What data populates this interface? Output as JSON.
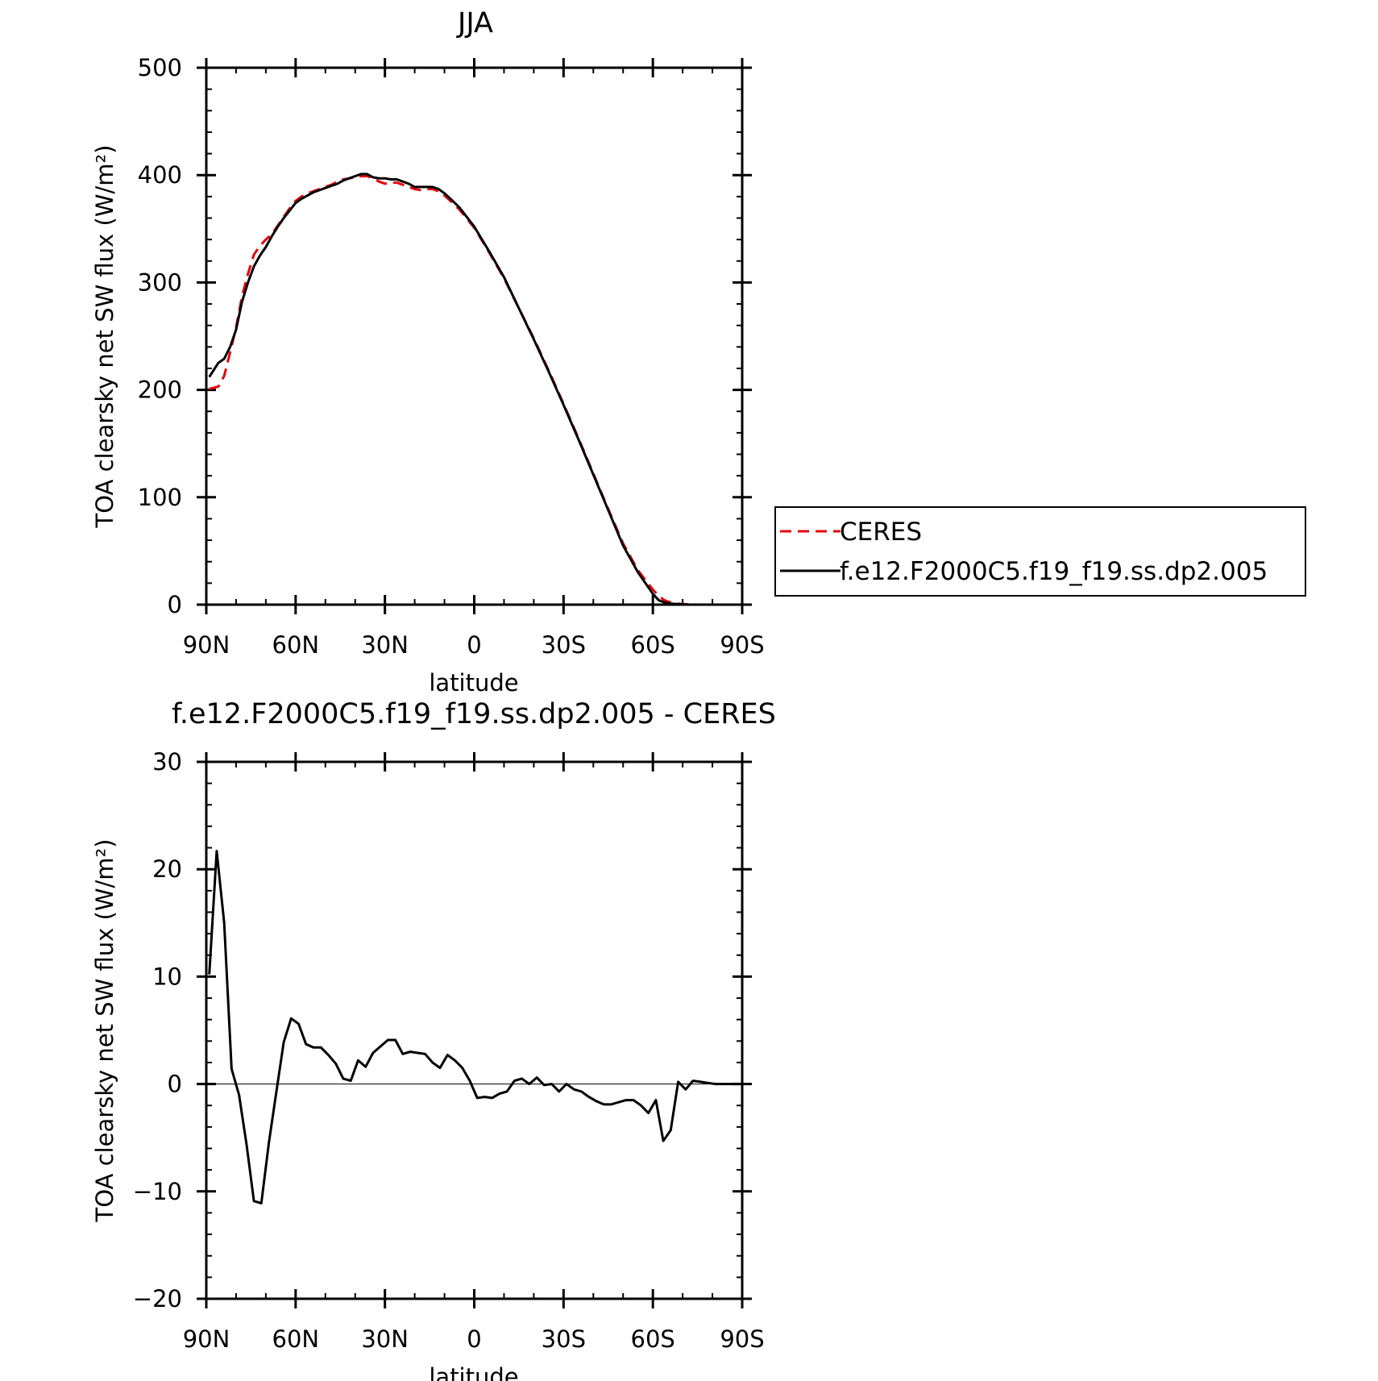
{
  "chart_data": [
    {
      "type": "line",
      "title": "JJA",
      "xlabel": "latitude",
      "ylabel": "TOA clearsky net SW flux (W/m²)",
      "xlim": [
        90,
        -90
      ],
      "ylim": [
        0,
        500
      ],
      "x_ticks": [
        90,
        60,
        30,
        0,
        -30,
        -60,
        -90
      ],
      "x_tick_labels": [
        "90N",
        "60N",
        "30N",
        "0",
        "30S",
        "60S",
        "90S"
      ],
      "y_ticks": [
        0,
        100,
        200,
        300,
        400,
        500
      ],
      "y_tick_labels": [
        "0",
        "100",
        "200",
        "300",
        "400",
        "500"
      ],
      "grid": false,
      "legend_position": "right",
      "series": [
        {
          "name": "CERES",
          "color": "#e8000b",
          "dash": "dashed",
          "x": [
            89,
            86,
            84,
            82,
            80,
            78,
            76,
            74,
            72,
            70,
            68,
            66,
            64,
            62,
            60,
            58,
            56,
            54,
            52,
            50,
            48,
            46,
            44,
            42,
            40,
            38,
            36,
            34,
            32,
            30,
            28,
            26,
            24,
            22,
            20,
            18,
            16,
            14,
            12,
            10,
            8,
            5,
            0,
            -5,
            -10,
            -15,
            -20,
            -25,
            -30,
            -35,
            -40,
            -45,
            -50,
            -55,
            -58,
            -60,
            -62,
            -64,
            -66,
            -68,
            -70,
            -72,
            -75,
            -80,
            -85,
            -89
          ],
          "y": [
            201,
            203,
            213,
            235,
            258,
            287,
            308,
            326,
            334,
            340,
            345,
            353,
            361,
            369,
            376,
            380,
            383,
            385,
            387,
            389,
            391,
            394,
            396,
            397,
            398,
            399,
            399,
            397,
            394,
            392,
            393,
            393,
            391,
            389,
            387,
            386,
            387,
            387,
            385,
            381,
            376,
            368,
            351,
            328,
            304,
            276,
            248,
            218,
            187,
            155,
            122,
            89,
            57,
            32,
            21,
            14,
            8,
            4,
            2,
            1,
            0.5,
            0.2,
            0,
            0,
            0,
            0
          ]
        },
        {
          "name": "f.e12.F2000C5.f19_f19.ss.dp2.005",
          "color": "#000000",
          "dash": "solid",
          "x": [
            89,
            86,
            84,
            82,
            80,
            78,
            76,
            74,
            72,
            70,
            68,
            66,
            64,
            62,
            60,
            58,
            56,
            54,
            52,
            50,
            48,
            46,
            44,
            42,
            40,
            38,
            36,
            34,
            32,
            30,
            28,
            26,
            24,
            22,
            20,
            18,
            16,
            14,
            12,
            10,
            8,
            5,
            0,
            -5,
            -10,
            -15,
            -20,
            -25,
            -30,
            -35,
            -40,
            -45,
            -50,
            -55,
            -58,
            -60,
            -62,
            -64,
            -66,
            -68,
            -70,
            -72,
            -75,
            -80,
            -85,
            -89
          ],
          "y": [
            212,
            225,
            229,
            240,
            256,
            282,
            300,
            315,
            325,
            333,
            343,
            352,
            360,
            367,
            374,
            378,
            381,
            384,
            386,
            388,
            390,
            392,
            395,
            397,
            399,
            401,
            401,
            398,
            397,
            397,
            396,
            396,
            394,
            392,
            389,
            389,
            389,
            389,
            387,
            383,
            378,
            370,
            352,
            329,
            305,
            276,
            247,
            217,
            186,
            154,
            121,
            88,
            55,
            30,
            18,
            10,
            4,
            2,
            1,
            0.5,
            0.3,
            0.1,
            0,
            0,
            0,
            0
          ]
        }
      ]
    },
    {
      "type": "line",
      "title": "f.e12.F2000C5.f19_f19.ss.dp2.005 - CERES",
      "xlabel": "latitude",
      "ylabel": "TOA clearsky net SW flux (W/m²)",
      "xlim": [
        90,
        -90
      ],
      "ylim": [
        -20,
        30
      ],
      "x_ticks": [
        90,
        60,
        30,
        0,
        -30,
        -60,
        -90
      ],
      "x_tick_labels": [
        "90N",
        "60N",
        "30N",
        "0",
        "30S",
        "60S",
        "90S"
      ],
      "y_ticks": [
        -20,
        -10,
        0,
        10,
        20,
        30
      ],
      "y_tick_labels": [
        "−20",
        "−10",
        "0",
        "10",
        "20",
        "30"
      ],
      "grid": false,
      "series": [
        {
          "color": "#000000",
          "x": [
            89,
            86.5,
            84,
            81.5,
            79,
            76.5,
            74,
            71.5,
            69,
            66.5,
            64,
            61.5,
            59,
            56.5,
            54,
            51.5,
            49,
            46.5,
            44,
            41.5,
            39,
            36.5,
            34,
            31.5,
            29,
            26.5,
            24,
            21.5,
            19,
            16.5,
            14,
            11.5,
            9,
            6.5,
            4,
            1.5,
            -1,
            -3.5,
            -6,
            -8.5,
            -11,
            -13.5,
            -16,
            -18.5,
            -21,
            -23.5,
            -26,
            -28.5,
            -31,
            -33.5,
            -36,
            -38.5,
            -41,
            -43.5,
            -46,
            -48.5,
            -51,
            -53.5,
            -56,
            -58.5,
            -61,
            -63.5,
            -66,
            -68.5,
            -71,
            -73.5,
            -76,
            -78.5,
            -81,
            -83.5,
            -86,
            -89
          ],
          "y": [
            10.2,
            21.7,
            15.0,
            1.4,
            -1.0,
            -5.6,
            -10.9,
            -11.1,
            -5.5,
            -0.8,
            3.9,
            6.1,
            5.6,
            3.7,
            3.4,
            3.4,
            2.7,
            1.9,
            0.5,
            0.3,
            2.2,
            1.6,
            2.9,
            3.5,
            4.1,
            4.1,
            2.8,
            3.0,
            2.9,
            2.8,
            2.0,
            1.5,
            2.7,
            2.2,
            1.5,
            0.3,
            -1.3,
            -1.2,
            -1.3,
            -0.9,
            -0.7,
            0.3,
            0.5,
            0.0,
            0.6,
            -0.1,
            -0.0,
            -0.7,
            0.0,
            -0.5,
            -0.7,
            -1.2,
            -1.6,
            -1.9,
            -1.9,
            -1.7,
            -1.5,
            -1.5,
            -2.0,
            -2.7,
            -1.5,
            -5.3,
            -4.3,
            0.2,
            -0.5,
            0.3,
            0.2,
            0.1,
            0.0,
            0.0,
            0.0,
            0.0
          ]
        }
      ]
    }
  ],
  "legend": {
    "entries": [
      {
        "label": "CERES",
        "color": "#e8000b",
        "dash": "dashed"
      },
      {
        "label": "f.e12.F2000C5.f19_f19.ss.dp2.005",
        "color": "#000000",
        "dash": "solid"
      }
    ]
  }
}
